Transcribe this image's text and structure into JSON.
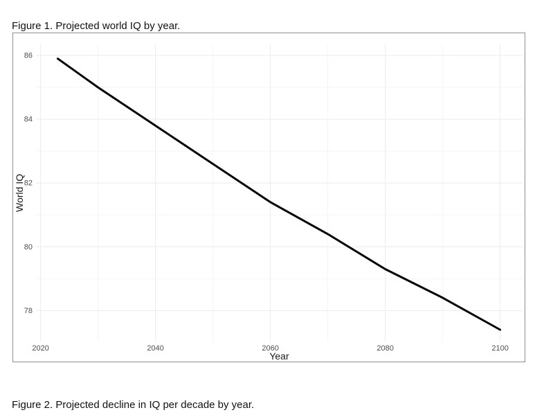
{
  "figure1": {
    "caption": "Figure 1. Projected world IQ by year."
  },
  "figure2": {
    "caption": "Figure 2. Projected decline in IQ per decade by year."
  },
  "chart_data": {
    "type": "line",
    "title": "",
    "xlabel": "Year",
    "ylabel": "World IQ",
    "x": [
      2023,
      2030,
      2040,
      2050,
      2060,
      2070,
      2080,
      2090,
      2100
    ],
    "y": [
      85.9,
      85.0,
      83.8,
      82.6,
      81.4,
      80.4,
      79.3,
      78.4,
      77.4
    ],
    "x_ticks": [
      2020,
      2040,
      2060,
      2080,
      2100
    ],
    "y_ticks": [
      78,
      80,
      82,
      84,
      86
    ],
    "x_minor_ticks": [
      2030,
      2050,
      2070,
      2090
    ],
    "y_minor_ticks": [
      79,
      81,
      83,
      85
    ],
    "xlim": [
      2019.2,
      2103.9
    ],
    "ylim": [
      77.03,
      86.35
    ],
    "grid": "on",
    "legend": "none",
    "line_color": "#000000",
    "line_width": 3,
    "major_grid_color": "#ececec",
    "minor_grid_color": "#f5f5f6",
    "tick_label_color": "#4d4d4d",
    "axis_title_color": "#1a1a1a",
    "plot_border_color": "#8f8f8f",
    "background_color": "#ffffff"
  }
}
